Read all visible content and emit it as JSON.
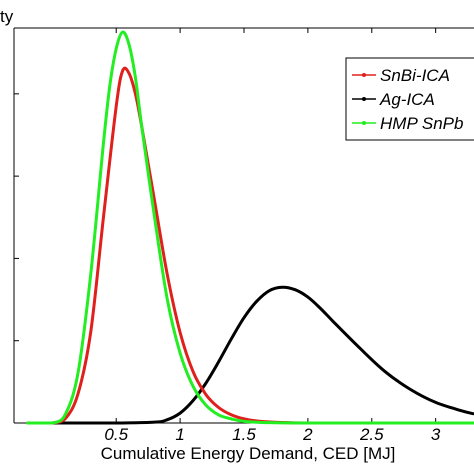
{
  "chart_data": {
    "type": "line",
    "ylabel_fragment": "ty",
    "xlabel": "Cumulative Energy Demand, CED [MJ]",
    "xlim": [
      -0.3,
      3.3
    ],
    "ylim": [
      0,
      4.8
    ],
    "x_ticks": [
      0.5,
      1,
      1.5,
      2,
      2.5,
      3
    ],
    "x_tick_labels": [
      "0.5",
      "1",
      "1.5",
      "2",
      "2.5",
      "3"
    ],
    "y_ticks": [
      0,
      1,
      2,
      3,
      4
    ],
    "grid": false,
    "legend_position": "top-right",
    "series": [
      {
        "name": "SnBi-ICA",
        "color": "#e0201c",
        "marker": "dot",
        "x": [
          -0.2,
          -0.1,
          0.0,
          0.1,
          0.2,
          0.3,
          0.4,
          0.5,
          0.55,
          0.6,
          0.65,
          0.7,
          0.8,
          0.9,
          1.0,
          1.1,
          1.2,
          1.3,
          1.4,
          1.5,
          1.6,
          1.8,
          2.0,
          2.5,
          3.0,
          3.3
        ],
        "y": [
          0.0,
          0.0,
          0.0,
          0.05,
          0.35,
          1.1,
          2.5,
          3.85,
          4.28,
          4.25,
          4.0,
          3.6,
          2.7,
          1.8,
          1.1,
          0.63,
          0.35,
          0.19,
          0.1,
          0.05,
          0.025,
          0.006,
          0.0,
          0.0,
          0.0,
          0.0
        ]
      },
      {
        "name": "Ag-ICA",
        "color": "#000000",
        "marker": "dot",
        "x": [
          -0.2,
          0.0,
          0.5,
          0.8,
          0.9,
          1.0,
          1.1,
          1.2,
          1.3,
          1.4,
          1.5,
          1.6,
          1.7,
          1.8,
          1.9,
          2.0,
          2.1,
          2.2,
          2.4,
          2.6,
          2.8,
          3.0,
          3.2,
          3.3
        ],
        "y": [
          0.0,
          0.0,
          0.0,
          0.01,
          0.04,
          0.12,
          0.27,
          0.48,
          0.74,
          1.02,
          1.28,
          1.48,
          1.61,
          1.65,
          1.62,
          1.53,
          1.39,
          1.23,
          0.92,
          0.63,
          0.41,
          0.25,
          0.15,
          0.11
        ]
      },
      {
        "name": "HMP SnPb",
        "color": "#22ee22",
        "marker": "dot",
        "x": [
          -0.2,
          -0.1,
          0.0,
          0.1,
          0.2,
          0.3,
          0.4,
          0.45,
          0.5,
          0.55,
          0.6,
          0.65,
          0.7,
          0.8,
          0.9,
          1.0,
          1.1,
          1.2,
          1.3,
          1.4,
          1.5,
          1.7,
          2.0,
          2.5,
          3.0,
          3.3
        ],
        "y": [
          0.0,
          0.0,
          0.0,
          0.1,
          0.6,
          1.8,
          3.4,
          4.1,
          4.55,
          4.75,
          4.6,
          4.2,
          3.6,
          2.5,
          1.5,
          0.85,
          0.45,
          0.22,
          0.1,
          0.05,
          0.02,
          0.004,
          0.0,
          0.0,
          0.0,
          0.0
        ]
      }
    ]
  }
}
